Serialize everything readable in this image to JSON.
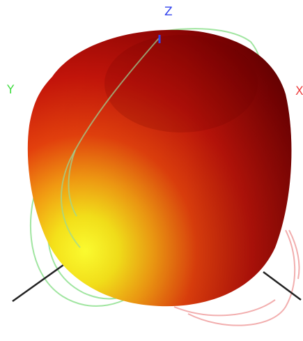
{
  "axes": {
    "z_label": "Z",
    "y_label": "Y",
    "x_label": "X"
  },
  "colors": {
    "z_axis": "#3344ee",
    "y_axis": "#44dd44",
    "x_axis": "#ee4444",
    "axis_line": "#222222",
    "pattern_dark": "#7a0000",
    "pattern_mid": "#d41a0a",
    "pattern_light": "#ffff22",
    "cut_green": "#8fe08f",
    "cut_red": "#f0a0a0"
  },
  "icons": {
    "pattern": "radiation-pattern-3d-icon"
  }
}
